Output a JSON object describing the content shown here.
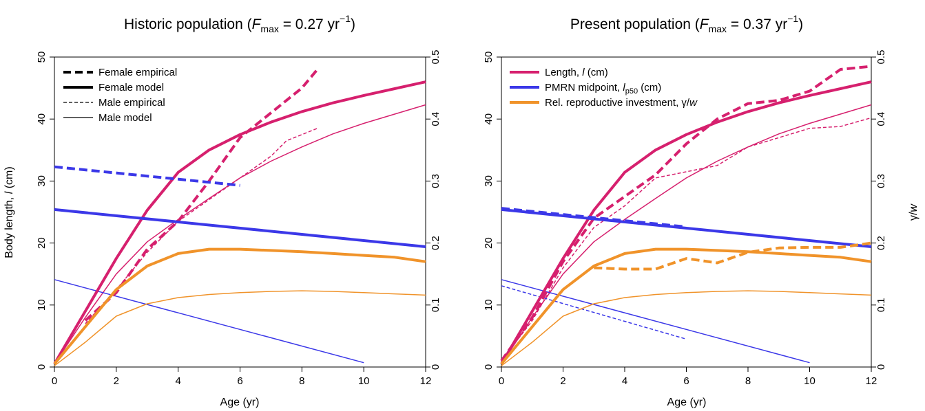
{
  "figure": {
    "shared_left_ylabel": "Body length, l (cm)",
    "shared_right_ylabel": "γ/w"
  },
  "chart_data": [
    {
      "type": "line",
      "title_prefix": "Historic population (",
      "title_var": "F",
      "title_sub": "max",
      "title_value": " =  0.27 yr",
      "title_sup": "−1",
      "title_suffix": ")",
      "xlabel": "Age (yr)",
      "ylabel": "Body length, l (cm)",
      "y2label": "",
      "xlim": [
        0,
        12
      ],
      "ylim": [
        0,
        50
      ],
      "y2lim": [
        0,
        0.5
      ],
      "x_ticks": [
        "0",
        "2",
        "4",
        "6",
        "8",
        "10",
        "12"
      ],
      "y_ticks": [
        "0",
        "10",
        "20",
        "30",
        "40",
        "50"
      ],
      "y2_ticks": [
        "0",
        "0.1",
        "0.2",
        "0.3",
        "0.4",
        "0.5"
      ],
      "legend": {
        "position": "top-left",
        "entries": [
          {
            "label": "Female empirical",
            "style": "dashed",
            "weight": "thick"
          },
          {
            "label": "Female model",
            "style": "solid",
            "weight": "thick"
          },
          {
            "label": "Male empirical",
            "style": "dashed",
            "weight": "thin"
          },
          {
            "label": "Male model",
            "style": "solid",
            "weight": "thin"
          }
        ]
      },
      "series": [
        {
          "color": "#d6206e",
          "style": "solid",
          "weight": "thick",
          "x": [
            0,
            1,
            2,
            3,
            4,
            5,
            6,
            7,
            8,
            9,
            10,
            11,
            12
          ],
          "y": [
            0.5,
            9,
            17.5,
            25.3,
            31.4,
            35,
            37.5,
            39.5,
            41.2,
            42.6,
            43.8,
            44.9,
            46
          ]
        },
        {
          "color": "#d6206e",
          "style": "dashed",
          "weight": "thick",
          "x": [
            1,
            2,
            3,
            4,
            5,
            6,
            7,
            8,
            8.5
          ],
          "y": [
            7.5,
            12,
            19,
            23.5,
            30,
            37,
            41,
            45,
            48
          ]
        },
        {
          "color": "#d6206e",
          "style": "solid",
          "weight": "thin",
          "x": [
            0,
            1,
            2,
            3,
            4,
            5,
            6,
            7,
            8,
            9,
            10,
            11,
            12
          ],
          "y": [
            0.5,
            8,
            15,
            20.2,
            23.8,
            27.2,
            30.5,
            33.2,
            35.5,
            37.6,
            39.3,
            40.8,
            42.3
          ]
        },
        {
          "color": "#d6206e",
          "style": "dashed",
          "weight": "thin",
          "x": [
            1,
            2,
            3,
            4,
            5,
            6,
            7,
            7.5,
            8,
            8.5
          ],
          "y": [
            7,
            12.5,
            18.5,
            23.5,
            27,
            30.5,
            34,
            36.5,
            37.5,
            38.5
          ]
        },
        {
          "color": "#3b38e8",
          "style": "solid",
          "weight": "thick",
          "x": [
            0,
            12
          ],
          "y": [
            25.4,
            19.4
          ]
        },
        {
          "color": "#3b38e8",
          "style": "dashed",
          "weight": "thick",
          "x": [
            0,
            6
          ],
          "y": [
            32.3,
            29.3
          ]
        },
        {
          "color": "#3b38e8",
          "style": "solid",
          "weight": "thin",
          "x": [
            0,
            10
          ],
          "y": [
            14.1,
            0.7
          ]
        },
        {
          "color": "#f0932a",
          "style": "solid",
          "weight": "thick",
          "x": [
            0,
            1,
            2,
            3,
            4,
            5,
            6,
            7,
            8,
            9,
            10,
            11,
            12
          ],
          "y": [
            0.005,
            0.065,
            0.125,
            0.163,
            0.183,
            0.19,
            0.19,
            0.188,
            0.186,
            0.183,
            0.18,
            0.177,
            0.17
          ]
        },
        {
          "color": "#f0932a",
          "style": "solid",
          "weight": "thin",
          "x": [
            0,
            1,
            2,
            3,
            4,
            5,
            6,
            7,
            8,
            9,
            10,
            11,
            12
          ],
          "y": [
            0.002,
            0.04,
            0.082,
            0.102,
            0.112,
            0.117,
            0.12,
            0.122,
            0.123,
            0.122,
            0.12,
            0.118,
            0.116
          ]
        }
      ]
    },
    {
      "type": "line",
      "title_prefix": "Present population (",
      "title_var": "F",
      "title_sub": "max",
      "title_value": " =  0.37 yr",
      "title_sup": "−1",
      "title_suffix": ")",
      "xlabel": "Age (yr)",
      "ylabel": "",
      "y2label": "γ/w",
      "xlim": [
        0,
        12
      ],
      "ylim": [
        0,
        50
      ],
      "y2lim": [
        0,
        0.5
      ],
      "x_ticks": [
        "0",
        "2",
        "4",
        "6",
        "8",
        "10",
        "12"
      ],
      "y_ticks": [
        "0",
        "10",
        "20",
        "30",
        "40",
        "50"
      ],
      "y2_ticks": [
        "0",
        "0.1",
        "0.2",
        "0.3",
        "0.4",
        "0.5"
      ],
      "legend": {
        "position": "top-left",
        "entries": [
          {
            "label": "Length, l (cm)",
            "color": "#d6206e"
          },
          {
            "label": "PMRN midpoint, l_p50 (cm)",
            "color": "#3b38e8"
          },
          {
            "label": "Rel. reproductive investment, γ/w",
            "color": "#f0932a"
          }
        ]
      },
      "series": [
        {
          "color": "#d6206e",
          "style": "solid",
          "weight": "thick",
          "x": [
            0,
            1,
            2,
            3,
            4,
            5,
            6,
            7,
            8,
            9,
            10,
            11,
            12
          ],
          "y": [
            0.5,
            9,
            17.5,
            25.3,
            31.4,
            35,
            37.5,
            39.5,
            41.2,
            42.6,
            43.8,
            44.9,
            46
          ]
        },
        {
          "color": "#d6206e",
          "style": "dashed",
          "weight": "thick",
          "x": [
            0,
            1,
            2,
            3,
            4,
            5,
            6,
            7,
            8,
            9,
            10,
            11,
            12
          ],
          "y": [
            1,
            8,
            17,
            24,
            27.5,
            31,
            36,
            40,
            42.5,
            43,
            44.5,
            48,
            48.5
          ]
        },
        {
          "color": "#d6206e",
          "style": "solid",
          "weight": "thin",
          "x": [
            0,
            1,
            2,
            3,
            4,
            5,
            6,
            7,
            8,
            9,
            10,
            11,
            12
          ],
          "y": [
            0.5,
            8,
            15,
            20.2,
            23.8,
            27.2,
            30.5,
            33.2,
            35.5,
            37.6,
            39.3,
            40.8,
            42.3
          ]
        },
        {
          "color": "#d6206e",
          "style": "dashed",
          "weight": "thin",
          "x": [
            0,
            1,
            2,
            3,
            4,
            5,
            6,
            7,
            8,
            9,
            10,
            11,
            12
          ],
          "y": [
            1,
            7.5,
            16,
            22.5,
            26,
            30.5,
            31.5,
            32.5,
            35.5,
            37,
            38.5,
            38.8,
            40.2
          ]
        },
        {
          "color": "#3b38e8",
          "style": "solid",
          "weight": "thick",
          "x": [
            0,
            12
          ],
          "y": [
            25.4,
            19.4
          ]
        },
        {
          "color": "#3b38e8",
          "style": "dashed",
          "weight": "thick",
          "x": [
            0,
            6
          ],
          "y": [
            25.6,
            22.6
          ]
        },
        {
          "color": "#3b38e8",
          "style": "solid",
          "weight": "thin",
          "x": [
            0,
            10
          ],
          "y": [
            14.1,
            0.7
          ]
        },
        {
          "color": "#3b38e8",
          "style": "dashed",
          "weight": "thin",
          "x": [
            0,
            6
          ],
          "y": [
            13.1,
            4.5
          ]
        },
        {
          "color": "#f0932a",
          "style": "solid",
          "weight": "thick",
          "x": [
            0,
            1,
            2,
            3,
            4,
            5,
            6,
            7,
            8,
            9,
            10,
            11,
            12
          ],
          "y": [
            0.005,
            0.065,
            0.125,
            0.163,
            0.183,
            0.19,
            0.19,
            0.188,
            0.186,
            0.183,
            0.18,
            0.177,
            0.17
          ]
        },
        {
          "color": "#f0932a",
          "style": "dashed",
          "weight": "thick",
          "x": [
            3,
            4,
            5,
            6,
            7,
            8,
            9,
            10,
            11,
            12
          ],
          "y": [
            0.16,
            0.158,
            0.158,
            0.175,
            0.168,
            0.185,
            0.192,
            0.193,
            0.193,
            0.2
          ]
        },
        {
          "color": "#f0932a",
          "style": "solid",
          "weight": "thin",
          "x": [
            0,
            1,
            2,
            3,
            4,
            5,
            6,
            7,
            8,
            9,
            10,
            11,
            12
          ],
          "y": [
            0.002,
            0.04,
            0.082,
            0.102,
            0.112,
            0.117,
            0.12,
            0.122,
            0.123,
            0.122,
            0.12,
            0.118,
            0.116
          ]
        }
      ]
    }
  ]
}
